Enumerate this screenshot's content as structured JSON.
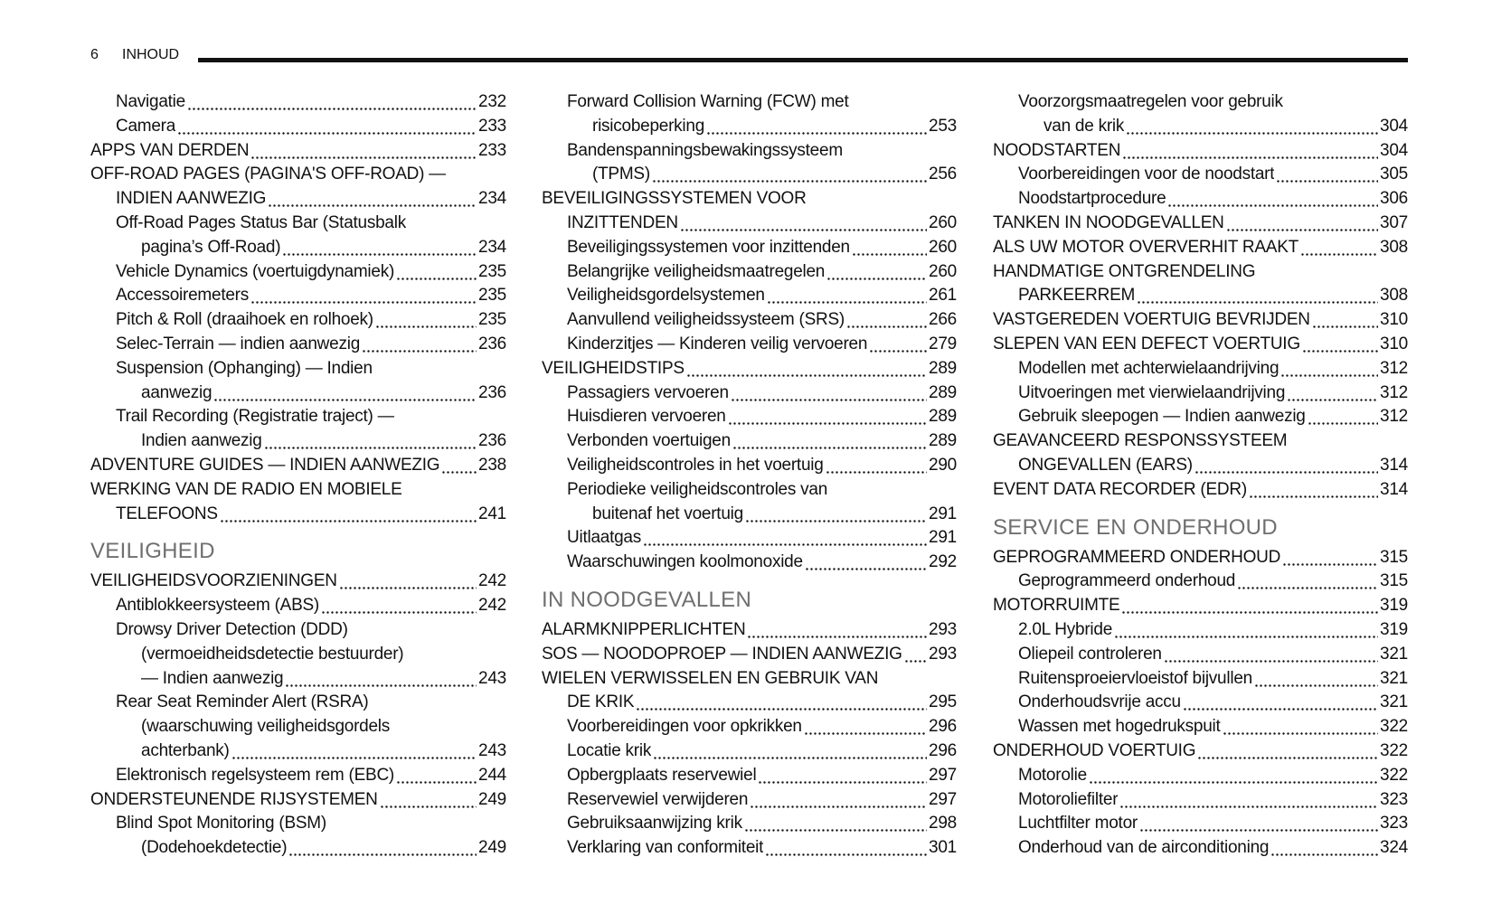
{
  "header": {
    "page_number": 6,
    "title": "INHOUD"
  },
  "columns": [
    {
      "items": [
        {
          "sub": [
            {
              "lines": [
                "Navigatie"
              ],
              "page": 232
            },
            {
              "lines": [
                "Camera"
              ],
              "page": 233
            }
          ]
        },
        {
          "lines": [
            "APPS VAN DERDEN"
          ],
          "page": 233
        },
        {
          "lines": [
            "OFF-ROAD PAGES (PAGINA'S OFF-ROAD) —",
            "INDIEN AANWEZIG"
          ],
          "page": 234,
          "sub": [
            {
              "lines": [
                "Off-Road Pages Status Bar (Statusbalk",
                "pagina’s Off-Road)"
              ],
              "page": 234
            },
            {
              "lines": [
                "Vehicle Dynamics (voertuigdynamiek)"
              ],
              "page": 235
            },
            {
              "lines": [
                "Accessoiremeters"
              ],
              "page": 235
            },
            {
              "lines": [
                "Pitch & Roll (draaihoek en rolhoek)"
              ],
              "page": 235
            },
            {
              "lines": [
                "Selec-Terrain — indien aanwezig"
              ],
              "page": 236
            },
            {
              "lines": [
                "Suspension (Ophanging) — Indien",
                "aanwezig"
              ],
              "page": 236
            },
            {
              "lines": [
                "Trail Recording (Registratie traject) —",
                "Indien aanwezig"
              ],
              "page": 236
            }
          ]
        },
        {
          "lines": [
            "ADVENTURE GUIDES — INDIEN AANWEZIG"
          ],
          "page": 238
        },
        {
          "lines": [
            "WERKING VAN DE RADIO EN MOBIELE",
            "TELEFOONS"
          ],
          "page": 241
        },
        {
          "heading": "VEILIGHEID"
        },
        {
          "lines": [
            "VEILIGHEIDSVOORZIENINGEN"
          ],
          "page": 242,
          "sub": [
            {
              "lines": [
                "Antiblokkeersysteem (ABS)"
              ],
              "page": 242
            },
            {
              "lines": [
                "Drowsy Driver Detection (DDD)",
                "(vermoeidheidsdetectie bestuurder)",
                "— Indien aanwezig"
              ],
              "page": 243
            },
            {
              "lines": [
                "Rear Seat Reminder Alert (RSRA)",
                "(waarschuwing veiligheidsgordels",
                "achterbank)"
              ],
              "page": 243
            },
            {
              "lines": [
                "Elektronisch regelsysteem rem (EBC)"
              ],
              "page": 244
            }
          ]
        },
        {
          "lines": [
            "ONDERSTEUNENDE RIJSYSTEMEN"
          ],
          "page": 249,
          "sub": [
            {
              "lines": [
                "Blind Spot Monitoring (BSM)",
                "(Dodehoekdetectie)"
              ],
              "page": 249
            }
          ]
        }
      ]
    },
    {
      "items": [
        {
          "sub": [
            {
              "lines": [
                "Forward Collision Warning (FCW) met",
                "risicobeperking"
              ],
              "page": 253
            },
            {
              "lines": [
                "Bandenspanningsbewakingssysteem",
                "(TPMS)"
              ],
              "page": 256
            }
          ]
        },
        {
          "lines": [
            "BEVEILIGINGSSYSTEMEN VOOR",
            "INZITTENDEN"
          ],
          "page": 260,
          "sub": [
            {
              "lines": [
                "Beveiligingssystemen voor inzittenden"
              ],
              "page": 260
            },
            {
              "lines": [
                "Belangrijke veiligheidsmaatregelen"
              ],
              "page": 260
            },
            {
              "lines": [
                "Veiligheidsgordelsystemen"
              ],
              "page": 261
            },
            {
              "lines": [
                "Aanvullend veiligheidssysteem (SRS)"
              ],
              "page": 266
            },
            {
              "lines": [
                "Kinderzitjes — Kinderen veilig vervoeren"
              ],
              "page": 279
            }
          ]
        },
        {
          "lines": [
            "VEILIGHEIDSTIPS"
          ],
          "page": 289,
          "sub": [
            {
              "lines": [
                "Passagiers vervoeren"
              ],
              "page": 289
            },
            {
              "lines": [
                "Huisdieren vervoeren"
              ],
              "page": 289
            },
            {
              "lines": [
                "Verbonden voertuigen"
              ],
              "page": 289
            },
            {
              "lines": [
                "Veiligheidscontroles in het voertuig"
              ],
              "page": 290
            },
            {
              "lines": [
                "Periodieke veiligheidscontroles van",
                "buitenaf het voertuig"
              ],
              "page": 291
            },
            {
              "lines": [
                "Uitlaatgas"
              ],
              "page": 291
            },
            {
              "lines": [
                "Waarschuwingen koolmonoxide"
              ],
              "page": 292
            }
          ]
        },
        {
          "heading": "IN NOODGEVALLEN"
        },
        {
          "lines": [
            "ALARMKNIPPERLICHTEN"
          ],
          "page": 293
        },
        {
          "lines": [
            "SOS — NOODOPROEP — INDIEN AANWEZIG"
          ],
          "page": 293
        },
        {
          "lines": [
            "WIELEN VERWISSELEN EN GEBRUIK VAN",
            "DE KRIK"
          ],
          "page": 295,
          "sub": [
            {
              "lines": [
                "Voorbereidingen voor opkrikken"
              ],
              "page": 296
            },
            {
              "lines": [
                "Locatie krik"
              ],
              "page": 296
            },
            {
              "lines": [
                "Opbergplaats reservewiel"
              ],
              "page": 297
            },
            {
              "lines": [
                "Reservewiel verwijderen"
              ],
              "page": 297
            },
            {
              "lines": [
                "Gebruiksaanwijzing krik"
              ],
              "page": 298
            },
            {
              "lines": [
                "Verklaring van conformiteit"
              ],
              "page": 301
            }
          ]
        }
      ]
    },
    {
      "items": [
        {
          "sub": [
            {
              "lines": [
                "Voorzorgsmaatregelen voor gebruik",
                "van de krik"
              ],
              "page": 304
            }
          ]
        },
        {
          "lines": [
            "NOODSTARTEN"
          ],
          "page": 304,
          "sub": [
            {
              "lines": [
                "Voorbereidingen voor de noodstart"
              ],
              "page": 305
            },
            {
              "lines": [
                "Noodstartprocedure"
              ],
              "page": 306
            }
          ]
        },
        {
          "lines": [
            "TANKEN IN NOODGEVALLEN"
          ],
          "page": 307
        },
        {
          "lines": [
            "ALS UW MOTOR OVERVERHIT RAAKT"
          ],
          "page": 308
        },
        {
          "lines": [
            "HANDMATIGE ONTGRENDELING",
            "PARKEERREM"
          ],
          "page": 308
        },
        {
          "lines": [
            "VASTGEREDEN VOERTUIG BEVRIJDEN"
          ],
          "page": 310
        },
        {
          "lines": [
            "SLEPEN VAN EEN DEFECT VOERTUIG"
          ],
          "page": 310,
          "sub": [
            {
              "lines": [
                "Modellen met achterwielaandrijving"
              ],
              "page": 312
            },
            {
              "lines": [
                "Uitvoeringen met vierwielaandrijving"
              ],
              "page": 312
            },
            {
              "lines": [
                "Gebruik sleepogen — Indien aanwezig"
              ],
              "page": 312
            }
          ]
        },
        {
          "lines": [
            "GEAVANCEERD RESPONSSYSTEEM",
            "ONGEVALLEN (EARS)"
          ],
          "page": 314
        },
        {
          "lines": [
            "EVENT DATA RECORDER (EDR)"
          ],
          "page": 314
        },
        {
          "heading": "SERVICE EN ONDERHOUD"
        },
        {
          "lines": [
            "GEPROGRAMMEERD ONDERHOUD"
          ],
          "page": 315,
          "sub": [
            {
              "lines": [
                "Geprogrammeerd onderhoud"
              ],
              "page": 315
            }
          ]
        },
        {
          "lines": [
            "MOTORRUIMTE"
          ],
          "page": 319,
          "sub": [
            {
              "lines": [
                "2.0L Hybride"
              ],
              "page": 319
            },
            {
              "lines": [
                "Oliepeil controleren"
              ],
              "page": 321
            },
            {
              "lines": [
                "Ruitensproeiervloeistof bijvullen"
              ],
              "page": 321
            },
            {
              "lines": [
                "Onderhoudsvrije accu"
              ],
              "page": 321
            },
            {
              "lines": [
                "Wassen met hogedrukspuit"
              ],
              "page": 322
            }
          ]
        },
        {
          "lines": [
            "ONDERHOUD VOERTUIG"
          ],
          "page": 322,
          "sub": [
            {
              "lines": [
                "Motorolie"
              ],
              "page": 322
            },
            {
              "lines": [
                "Motoroliefilter"
              ],
              "page": 323
            },
            {
              "lines": [
                "Luchtfilter motor"
              ],
              "page": 323
            },
            {
              "lines": [
                "Onderhoud van de airconditioning"
              ],
              "page": 324
            }
          ]
        }
      ]
    }
  ]
}
